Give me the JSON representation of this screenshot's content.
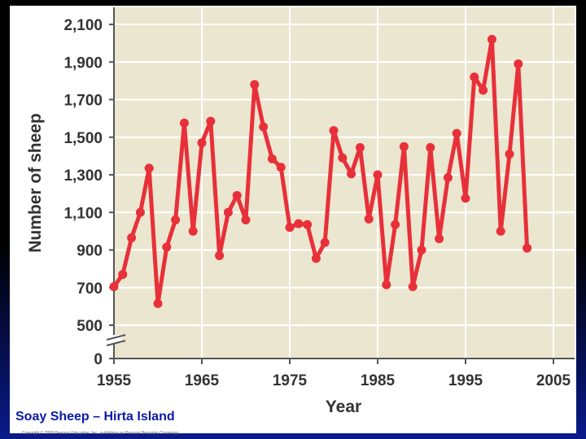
{
  "caption": "Soay Sheep – Hirta Island",
  "copyright": "Copyright © 2008 Pearson Education, Inc., publishing as Pearson Benjamin Cummings.",
  "colors": {
    "plot_background": "#ebe6cf",
    "series_line": "#e8303a",
    "gridline": "#ffffff",
    "caption_text": "#0a1aa8"
  },
  "chart_data": {
    "type": "line",
    "title": "",
    "xlabel": "Year",
    "ylabel": "Number of sheep",
    "xlim": [
      1955,
      2007
    ],
    "ylim": [
      0,
      2180
    ],
    "axis_break": "between 0 and 500 on y-axis",
    "grid": true,
    "x_ticks": [
      1955,
      1965,
      1975,
      1985,
      1995,
      2005
    ],
    "x_tick_labels": [
      "1955",
      "1965",
      "1975",
      "1985",
      "1995",
      "2005"
    ],
    "y_ticks": [
      0,
      500,
      700,
      900,
      1100,
      1300,
      1500,
      1700,
      1900,
      2100
    ],
    "y_tick_labels": [
      "0",
      "500",
      "700",
      "900",
      "1,100",
      "1,300",
      "1,500",
      "1,700",
      "1,900",
      "2,100"
    ],
    "series": [
      {
        "x": [
          1955,
          1956,
          1957,
          1958,
          1959,
          1960,
          1961,
          1962,
          1963,
          1964,
          1965,
          1966,
          1967,
          1968,
          1969,
          1970,
          1971,
          1972,
          1973,
          1974,
          1975,
          1976,
          1977,
          1978,
          1979,
          1980,
          1981,
          1982,
          1983,
          1984,
          1985,
          1986,
          1987,
          1988,
          1989,
          1990,
          1991,
          1992,
          1993,
          1994,
          1995,
          1996,
          1997,
          1998,
          1999,
          2000,
          2001,
          2002
        ],
        "y": [
          705,
          770,
          965,
          1100,
          1335,
          615,
          915,
          1060,
          1575,
          1000,
          1470,
          1585,
          870,
          1100,
          1190,
          1060,
          1780,
          1555,
          1385,
          1340,
          1020,
          1040,
          1035,
          855,
          940,
          1535,
          1390,
          1305,
          1445,
          1065,
          1300,
          715,
          1035,
          1450,
          705,
          900,
          1445,
          960,
          1285,
          1520,
          1175,
          1820,
          1750,
          2020,
          1000,
          1410,
          1890,
          910
        ]
      }
    ]
  }
}
